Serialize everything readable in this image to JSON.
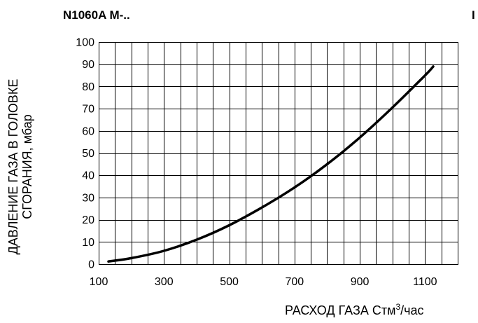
{
  "chart_data": {
    "type": "line",
    "title": "N1060A M-..",
    "title_clipped": "I",
    "ylabel_line1": "ДАВЛЕНИЕ ГАЗА В ГОЛОВКЕ",
    "ylabel_line2": "СГОРАНИЯ, мбар",
    "xlabel_main": "РАСХОД ГАЗА Стм",
    "xlabel_sup": "3",
    "xlabel_tail": "/час",
    "xlim": [
      100,
      1200
    ],
    "ylim": [
      0,
      100
    ],
    "x_ticks": [
      100,
      300,
      500,
      700,
      900,
      1100
    ],
    "y_ticks": [
      0,
      10,
      20,
      30,
      40,
      50,
      60,
      70,
      80,
      90,
      100
    ],
    "grid": true,
    "series": [
      {
        "color": "#000000",
        "x": [
          130,
          200,
          300,
          400,
          500,
          600,
          700,
          800,
          900,
          1000,
          1100,
          1125
        ],
        "y": [
          1.2,
          2.7,
          6.0,
          11.0,
          17.5,
          25.5,
          34.5,
          45.0,
          57.0,
          70.5,
          85.0,
          89.0
        ]
      }
    ]
  }
}
